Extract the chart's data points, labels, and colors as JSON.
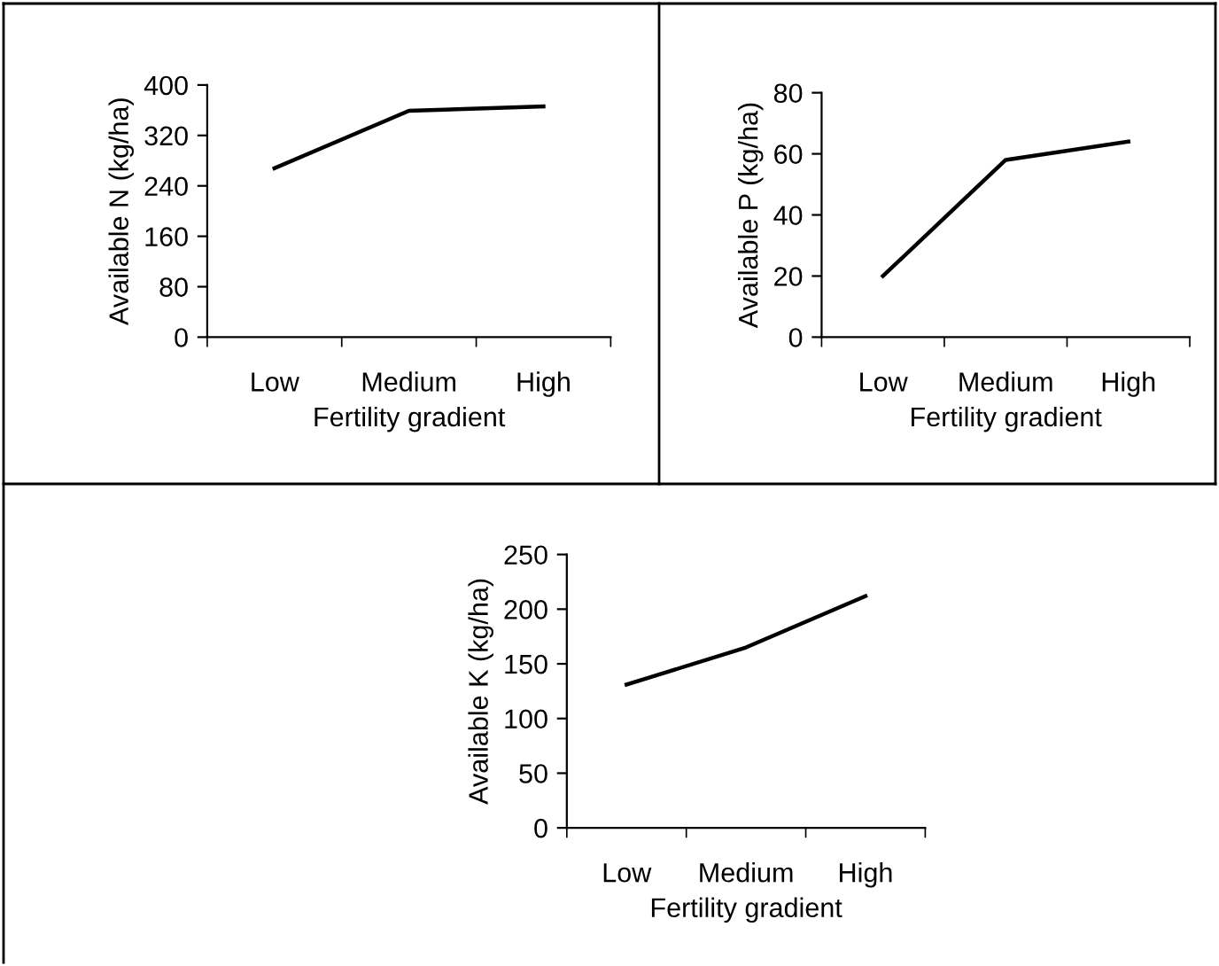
{
  "chart_data": [
    {
      "type": "line",
      "xlabel": "Fertility gradient",
      "ylabel": "Available N (kg/ha)",
      "categories": [
        "Low",
        "Medium",
        "High"
      ],
      "series": [
        {
          "color": "#000000",
          "values": [
            268,
            359,
            366
          ]
        }
      ],
      "ylim": [
        0,
        400
      ],
      "yticks": [
        0,
        80,
        160,
        240,
        320,
        400
      ],
      "grid": false,
      "legend": false,
      "marker": "none",
      "line_style": "solid"
    },
    {
      "type": "line",
      "xlabel": "Fertility gradient",
      "ylabel": "Available P (kg/ha)",
      "categories": [
        "Low",
        "Medium",
        "High"
      ],
      "series": [
        {
          "color": "#000000",
          "values": [
            20,
            58,
            64
          ]
        }
      ],
      "ylim": [
        0,
        80
      ],
      "yticks": [
        0,
        20,
        40,
        60,
        80
      ],
      "grid": false,
      "legend": false,
      "marker": "none",
      "line_style": "solid"
    },
    {
      "type": "line",
      "xlabel": "Fertility gradient",
      "ylabel": "Available K (kg/ha)",
      "categories": [
        "Low",
        "Medium",
        "High"
      ],
      "series": [
        {
          "color": "#000000",
          "values": [
            131,
            165,
            212
          ]
        }
      ],
      "ylim": [
        0,
        250
      ],
      "yticks": [
        0,
        50,
        100,
        150,
        200,
        250
      ],
      "grid": false,
      "legend": false,
      "marker": "none",
      "line_style": "solid"
    }
  ]
}
